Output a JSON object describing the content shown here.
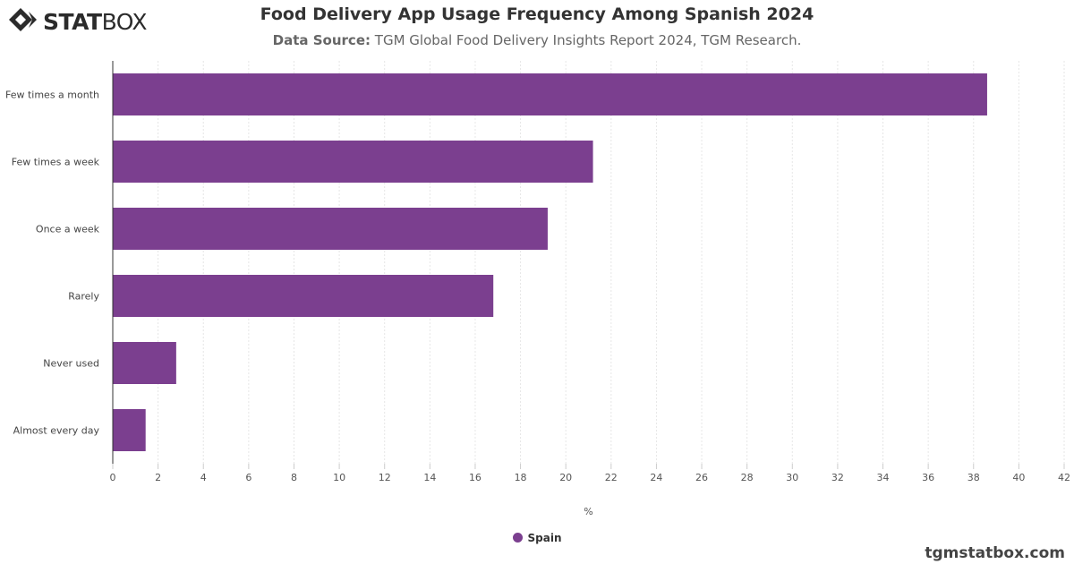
{
  "header": {
    "logo_bold": "STAT",
    "logo_light": "BOX",
    "title": "Food Delivery App Usage Frequency Among Spanish 2024",
    "source_label": "Data Source:",
    "source_text": "TGM Global Food Delivery Insights Report 2024, TGM Research."
  },
  "footer": {
    "site": "tgmstatbox.com"
  },
  "colors": {
    "bar": "#7b3f8f",
    "grid": "#e6e6e6",
    "axis": "#333333"
  },
  "chart_data": {
    "type": "bar",
    "orientation": "horizontal",
    "categories": [
      "Few times a month",
      "Few times a week",
      "Once a week",
      "Rarely",
      "Never used",
      "Almost every day"
    ],
    "series": [
      {
        "name": "Spain",
        "values": [
          38.6,
          21.2,
          19.2,
          16.8,
          2.8,
          1.45
        ]
      }
    ],
    "xlabel": "%",
    "xlim": [
      0,
      42
    ],
    "xticks": [
      0,
      2,
      4,
      6,
      8,
      10,
      12,
      14,
      16,
      18,
      20,
      22,
      24,
      26,
      28,
      30,
      32,
      34,
      36,
      38,
      40,
      42
    ],
    "grid": true,
    "legend_position": "bottom-center"
  }
}
